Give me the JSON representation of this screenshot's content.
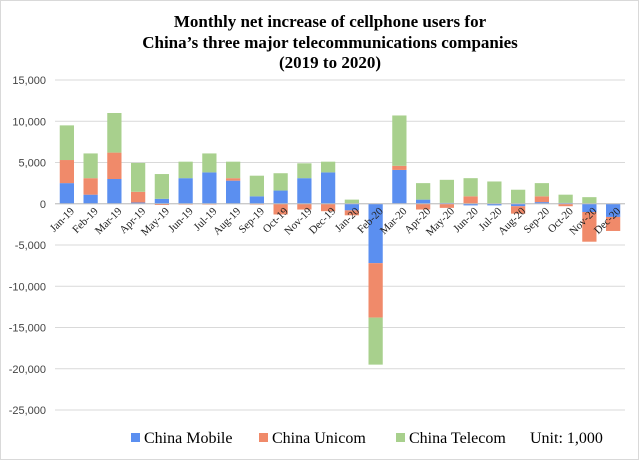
{
  "chart_data": {
    "type": "bar",
    "stacked": true,
    "title_lines": [
      "Monthly net increase of cellphone users for",
      "China’s three major telecommunications companies",
      "(2019 to 2020)"
    ],
    "unit_note": "Unit: 1,000",
    "ylim": [
      -25000,
      15000
    ],
    "yticks": [
      15000,
      10000,
      5000,
      0,
      -5000,
      -10000,
      -15000,
      -20000,
      -25000
    ],
    "ytick_labels": [
      "15,000",
      "10,000",
      "5,000",
      "0",
      "-5,000",
      "-10,000",
      "-15,000",
      "-20,000",
      "-25,000"
    ],
    "grid": true,
    "legend_position": "bottom",
    "categories": [
      "Jan-19",
      "Feb-19",
      "Mar-19",
      "Apr-19",
      "May-19",
      "Jun-19",
      "Jul-19",
      "Aug-19",
      "Sep-19",
      "Oct-19",
      "Nov-19",
      "Dec-19",
      "Jan-20",
      "Feb-20",
      "Mar-20",
      "Apr-20",
      "May-20",
      "Jun-20",
      "Jul-20",
      "Aug-20",
      "Sep-20",
      "Oct-20",
      "Nov-20",
      "Dec-20"
    ],
    "series": [
      {
        "name": "China Mobile",
        "color": "#5b8ff0",
        "values": [
          2500,
          1100,
          3000,
          150,
          600,
          3100,
          3800,
          2800,
          900,
          1600,
          3100,
          3800,
          -800,
          -7200,
          4100,
          500,
          100,
          -200,
          -200,
          -300,
          200,
          100,
          -1000,
          -1600
        ]
      },
      {
        "name": "China Unicom",
        "color": "#f08a6a",
        "values": [
          2800,
          2000,
          3200,
          1300,
          -150,
          -100,
          -100,
          300,
          -100,
          -1300,
          -700,
          -900,
          -600,
          -6600,
          500,
          -700,
          -500,
          900,
          0,
          -900,
          700,
          -300,
          -3600,
          -1700
        ]
      },
      {
        "name": "China Telecom",
        "color": "#a8d08d",
        "values": [
          4200,
          3000,
          4800,
          3500,
          3000,
          2000,
          2300,
          2000,
          2500,
          2100,
          1800,
          1300,
          500,
          -5700,
          6100,
          2000,
          2800,
          2200,
          2700,
          1700,
          1600,
          1000,
          800,
          0
        ]
      }
    ]
  }
}
